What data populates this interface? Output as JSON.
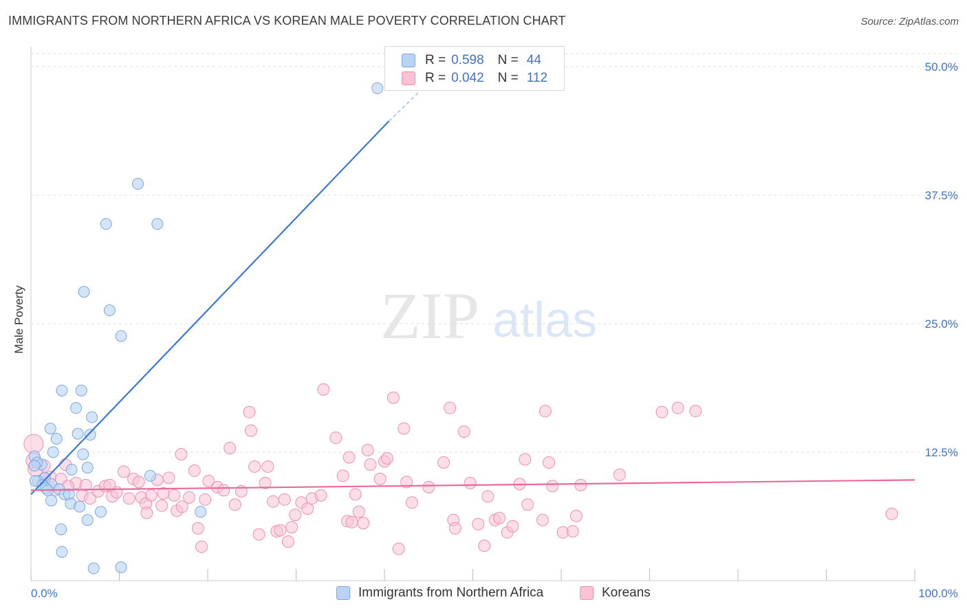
{
  "title": "IMMIGRANTS FROM NORTHERN AFRICA VS KOREAN MALE POVERTY CORRELATION CHART",
  "source": "Source: ZipAtlas.com",
  "watermark": {
    "zip": "ZIP",
    "atlas": "atlas"
  },
  "legend": {
    "r_label": "R =",
    "n_label": "N =",
    "series": [
      {
        "r": "0.598",
        "n": "44"
      },
      {
        "r": "0.042",
        "n": "112"
      }
    ]
  },
  "bottom_legend": [
    "Immigrants from Northern Africa",
    "Koreans"
  ],
  "colors": {
    "blue_fill": "#b9d3f5",
    "blue_stroke": "#7aa7e0",
    "blue_line": "#3a78d8",
    "pink_fill": "#f9c3d5",
    "pink_stroke": "#ee8fb1",
    "pink_line": "#e8699a",
    "tick_text": "#3f73c9",
    "grid": "#dddddd"
  },
  "chart_data": {
    "type": "scatter",
    "xlabel": "",
    "ylabel": "Male Poverty",
    "xlim": [
      0,
      100
    ],
    "ylim": [
      0,
      50
    ],
    "x_ticks": [
      0,
      10,
      20,
      30,
      40,
      50,
      60,
      70,
      80,
      90,
      100
    ],
    "x_tick_labels": [
      "0.0%",
      "100.0%"
    ],
    "y_ticks": [
      12.5,
      25.0,
      37.5,
      50.0
    ],
    "y_tick_labels": [
      "12.5%",
      "25.0%",
      "37.5%",
      "50.0%"
    ],
    "grid": "horizontal dashed",
    "legend_position": "top-center",
    "series": [
      {
        "name": "Immigrants from Northern Africa",
        "points": [
          [
            39.2,
            47.9
          ],
          [
            12.1,
            38.6
          ],
          [
            14.3,
            34.7
          ],
          [
            8.5,
            34.7
          ],
          [
            6.0,
            28.1
          ],
          [
            8.9,
            26.3
          ],
          [
            10.2,
            23.8
          ],
          [
            3.5,
            18.5
          ],
          [
            5.7,
            18.5
          ],
          [
            5.1,
            16.8
          ],
          [
            6.9,
            15.9
          ],
          [
            2.2,
            14.8
          ],
          [
            5.3,
            14.3
          ],
          [
            6.7,
            14.2
          ],
          [
            2.9,
            13.8
          ],
          [
            0.4,
            12.1
          ],
          [
            2.5,
            12.5
          ],
          [
            5.9,
            12.3
          ],
          [
            1.2,
            11.3
          ],
          [
            0.7,
            11.5
          ],
          [
            0.4,
            11.2
          ],
          [
            4.6,
            10.8
          ],
          [
            6.4,
            11.0
          ],
          [
            13.5,
            10.2
          ],
          [
            1.6,
            10.0
          ],
          [
            0.8,
            9.7
          ],
          [
            0.5,
            9.7
          ],
          [
            2.3,
            9.4
          ],
          [
            1.3,
            9.3
          ],
          [
            1.7,
            9.0
          ],
          [
            3.2,
            8.9
          ],
          [
            1.9,
            8.8
          ],
          [
            3.8,
            8.4
          ],
          [
            4.3,
            8.4
          ],
          [
            2.3,
            7.8
          ],
          [
            4.5,
            7.5
          ],
          [
            5.5,
            7.2
          ],
          [
            7.9,
            6.7
          ],
          [
            19.2,
            6.7
          ],
          [
            6.4,
            5.9
          ],
          [
            3.4,
            5.0
          ],
          [
            3.5,
            2.8
          ],
          [
            7.1,
            1.2
          ],
          [
            10.2,
            1.3
          ]
        ],
        "trend": {
          "x": [
            0,
            40.5
          ],
          "y": [
            8.4,
            44.7
          ]
        },
        "trend_dashed": {
          "x": [
            40.5,
            44.0
          ],
          "y": [
            44.7,
            47.6
          ]
        }
      },
      {
        "name": "Koreans",
        "points": [
          [
            0.3,
            13.3
          ],
          [
            0.3,
            11.7
          ],
          [
            0.5,
            10.9
          ],
          [
            1.5,
            11.2
          ],
          [
            3.9,
            11.3
          ],
          [
            2.2,
            10.1
          ],
          [
            1.5,
            9.9
          ],
          [
            3.4,
            9.9
          ],
          [
            5.1,
            9.5
          ],
          [
            6.2,
            9.3
          ],
          [
            4.2,
            9.2
          ],
          [
            2.7,
            8.8
          ],
          [
            5.8,
            8.3
          ],
          [
            6.7,
            8.0
          ],
          [
            7.6,
            8.7
          ],
          [
            8.4,
            9.2
          ],
          [
            9.2,
            8.2
          ],
          [
            9.7,
            8.6
          ],
          [
            10.5,
            10.6
          ],
          [
            11.1,
            8.0
          ],
          [
            11.6,
            9.9
          ],
          [
            12.5,
            8.1
          ],
          [
            13.0,
            7.5
          ],
          [
            13.1,
            6.6
          ],
          [
            13.6,
            8.3
          ],
          [
            14.3,
            9.8
          ],
          [
            14.8,
            7.3
          ],
          [
            15.0,
            8.5
          ],
          [
            16.2,
            8.3
          ],
          [
            16.5,
            6.8
          ],
          [
            17.0,
            12.3
          ],
          [
            17.1,
            7.2
          ],
          [
            17.9,
            8.1
          ],
          [
            18.5,
            10.7
          ],
          [
            18.9,
            5.1
          ],
          [
            19.3,
            3.3
          ],
          [
            19.7,
            7.9
          ],
          [
            20.1,
            9.7
          ],
          [
            21.1,
            9.1
          ],
          [
            21.8,
            8.8
          ],
          [
            22.5,
            12.9
          ],
          [
            23.1,
            7.4
          ],
          [
            23.8,
            8.7
          ],
          [
            24.7,
            16.4
          ],
          [
            24.9,
            14.6
          ],
          [
            25.3,
            11.1
          ],
          [
            25.8,
            4.5
          ],
          [
            26.5,
            9.5
          ],
          [
            26.8,
            11.1
          ],
          [
            27.4,
            7.7
          ],
          [
            27.8,
            4.8
          ],
          [
            28.2,
            4.9
          ],
          [
            28.7,
            7.9
          ],
          [
            29.1,
            3.8
          ],
          [
            29.5,
            5.2
          ],
          [
            29.9,
            6.4
          ],
          [
            30.6,
            7.6
          ],
          [
            31.3,
            7.0
          ],
          [
            31.8,
            8.0
          ],
          [
            32.8,
            8.3
          ],
          [
            33.1,
            18.6
          ],
          [
            34.5,
            13.9
          ],
          [
            35.3,
            10.2
          ],
          [
            35.8,
            5.8
          ],
          [
            36.3,
            5.7
          ],
          [
            36.7,
            8.4
          ],
          [
            37.1,
            6.7
          ],
          [
            37.6,
            5.6
          ],
          [
            38.1,
            12.7
          ],
          [
            38.4,
            11.3
          ],
          [
            39.5,
            9.9
          ],
          [
            40.0,
            11.6
          ],
          [
            40.3,
            11.9
          ],
          [
            41.0,
            17.8
          ],
          [
            41.6,
            3.1
          ],
          [
            42.2,
            14.8
          ],
          [
            43.1,
            7.6
          ],
          [
            45.0,
            9.1
          ],
          [
            46.7,
            11.5
          ],
          [
            47.4,
            16.8
          ],
          [
            47.8,
            5.9
          ],
          [
            48.0,
            5.1
          ],
          [
            49.0,
            14.5
          ],
          [
            49.7,
            9.5
          ],
          [
            50.6,
            5.5
          ],
          [
            51.3,
            3.4
          ],
          [
            51.7,
            8.2
          ],
          [
            52.5,
            5.9
          ],
          [
            53.0,
            6.1
          ],
          [
            53.9,
            4.7
          ],
          [
            54.5,
            5.3
          ],
          [
            55.3,
            9.4
          ],
          [
            55.9,
            11.8
          ],
          [
            56.2,
            7.4
          ],
          [
            57.9,
            5.9
          ],
          [
            58.2,
            16.5
          ],
          [
            58.6,
            11.5
          ],
          [
            59.0,
            9.2
          ],
          [
            60.2,
            4.7
          ],
          [
            61.3,
            4.8
          ],
          [
            61.7,
            6.3
          ],
          [
            62.2,
            9.3
          ],
          [
            66.6,
            10.3
          ],
          [
            71.4,
            16.4
          ],
          [
            73.2,
            16.8
          ],
          [
            75.2,
            16.5
          ],
          [
            97.4,
            6.5
          ],
          [
            36.0,
            12.0
          ],
          [
            42.5,
            9.6
          ],
          [
            15.6,
            10.0
          ],
          [
            8.9,
            9.3
          ],
          [
            12.2,
            9.6
          ]
        ],
        "trend": {
          "x": [
            0,
            100
          ],
          "y": [
            8.8,
            9.8
          ]
        }
      }
    ]
  }
}
